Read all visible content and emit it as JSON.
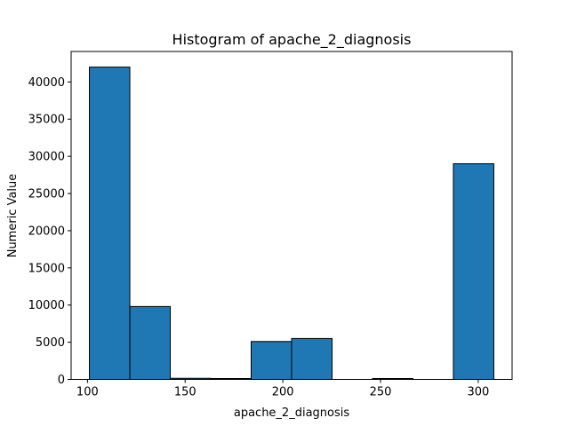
{
  "chart_data": {
    "type": "bar",
    "title": "Histogram of apache_2_diagnosis",
    "xlabel": "apache_2_diagnosis",
    "ylabel": "Numeric Value",
    "bins": [
      {
        "start": 101,
        "end": 121.7,
        "count": 42000
      },
      {
        "start": 121.7,
        "end": 142.4,
        "count": 9800
      },
      {
        "start": 142.4,
        "end": 163.1,
        "count": 150
      },
      {
        "start": 163.1,
        "end": 183.8,
        "count": 120
      },
      {
        "start": 183.8,
        "end": 204.5,
        "count": 5100
      },
      {
        "start": 204.5,
        "end": 225.2,
        "count": 5500
      },
      {
        "start": 225.2,
        "end": 245.9,
        "count": 0
      },
      {
        "start": 245.9,
        "end": 266.6,
        "count": 120
      },
      {
        "start": 266.6,
        "end": 287.3,
        "count": 0
      },
      {
        "start": 287.3,
        "end": 308,
        "count": 29000
      }
    ],
    "xlim": [
      91.65,
      317.35
    ],
    "ylim": [
      0,
      44100
    ],
    "xticks": [
      100,
      150,
      200,
      250,
      300
    ],
    "yticks": [
      0,
      5000,
      10000,
      15000,
      20000,
      25000,
      30000,
      35000,
      40000
    ],
    "bar_color": "#1f77b4",
    "edge_color": "#000000",
    "grid": false,
    "legend": "none"
  }
}
